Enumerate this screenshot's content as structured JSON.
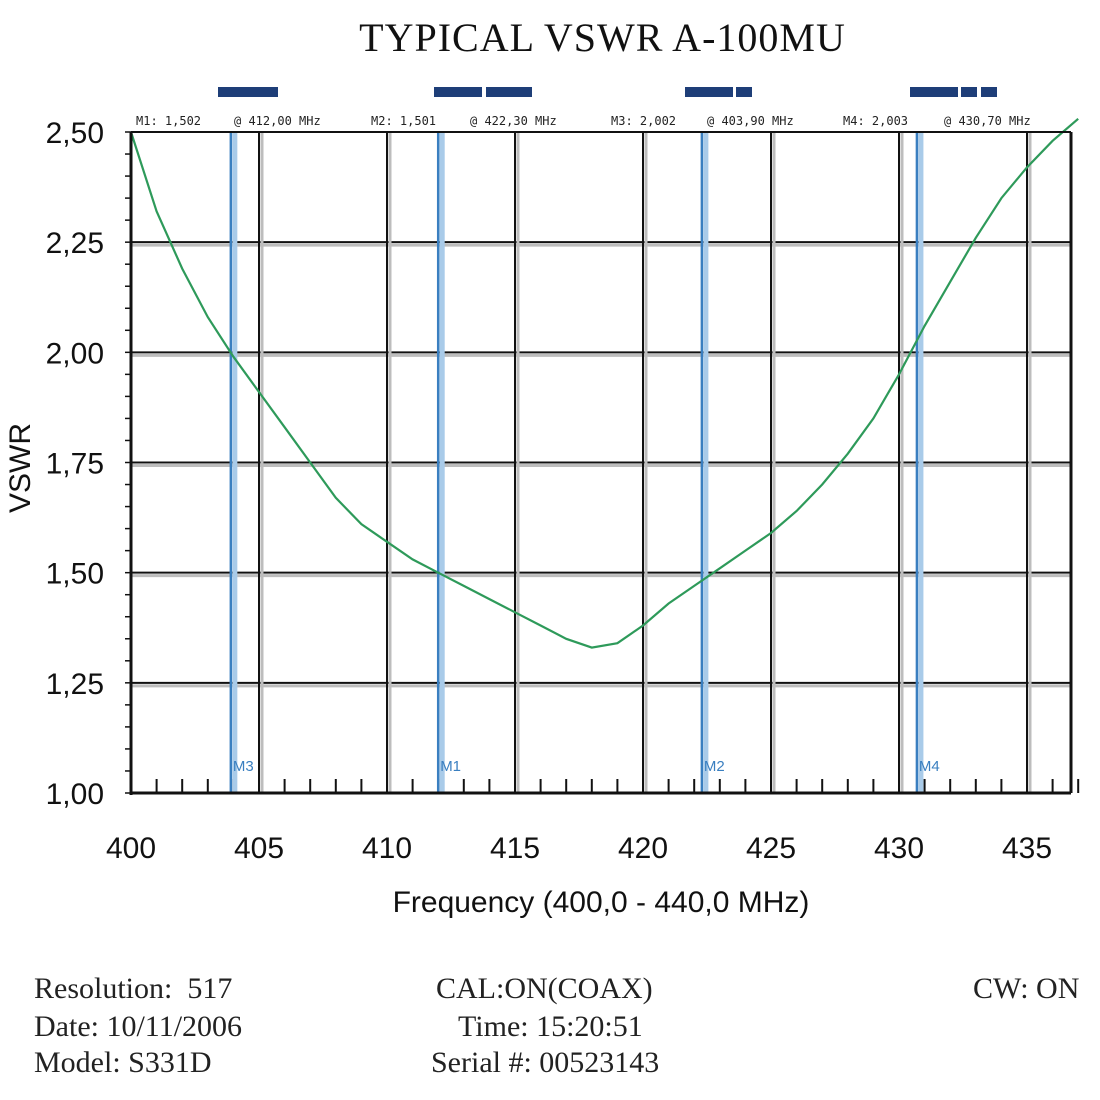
{
  "chart_data": {
    "type": "line",
    "title": "TYPICAL VSWR A-100MU",
    "xlabel": "Frequency (400,0 - 440,0 MHz)",
    "ylabel": "VSWR",
    "xlim": [
      400,
      437
    ],
    "ylim": [
      1.0,
      2.5
    ],
    "x_ticks": [
      400,
      405,
      410,
      415,
      420,
      425,
      430,
      435
    ],
    "y_ticks": [
      1.0,
      1.25,
      1.5,
      1.75,
      2.0,
      2.25,
      2.5
    ],
    "y_tick_labels": [
      "1,00",
      "1,25",
      "1,50",
      "1,75",
      "2,00",
      "2,25",
      "2,50"
    ],
    "grid": true,
    "series": [
      {
        "x": [
          400,
          401,
          402,
          403,
          404,
          405,
          406,
          407,
          408,
          409,
          410,
          411,
          412,
          413,
          414,
          415,
          416,
          417,
          418,
          419,
          420,
          421,
          422,
          423,
          424,
          425,
          426,
          427,
          428,
          429,
          430,
          431,
          432,
          433,
          434,
          435,
          436,
          437
        ],
        "y": [
          2.5,
          2.32,
          2.19,
          2.08,
          1.99,
          1.91,
          1.83,
          1.75,
          1.67,
          1.61,
          1.57,
          1.53,
          1.5,
          1.47,
          1.44,
          1.41,
          1.38,
          1.35,
          1.33,
          1.34,
          1.38,
          1.43,
          1.47,
          1.51,
          1.55,
          1.59,
          1.64,
          1.7,
          1.77,
          1.85,
          1.95,
          2.06,
          2.16,
          2.26,
          2.35,
          2.42,
          2.48,
          2.53
        ],
        "color": "#2e9a5a"
      }
    ],
    "markers": [
      {
        "name": "M3",
        "x": 403.9
      },
      {
        "name": "M1",
        "x": 412.0
      },
      {
        "name": "M2",
        "x": 422.3
      },
      {
        "name": "M4",
        "x": 430.7
      }
    ],
    "marker_readout": [
      {
        "label": "M1: 1,502",
        "freq": "@ 412,00 MHz"
      },
      {
        "label": "M2: 1,501",
        "freq": "@ 422,30 MHz"
      },
      {
        "label": "M3: 2,002",
        "freq": "@ 403,90 MHz"
      },
      {
        "label": "M4: 2,003",
        "freq": "@ 430,70 MHz"
      }
    ],
    "colors": {
      "trace": "#2e9a5a",
      "marker_line": "#3a7fc0",
      "marker_line_light": "#a9cbe9",
      "indicator": "#1e3e78",
      "grid": "#111111",
      "grid_light": "#bdbdbd"
    }
  },
  "footer": {
    "resolution": "Resolution:  517",
    "date": "Date: 10/11/2006",
    "model": "Model: S331D",
    "cal": "CAL:ON(COAX)",
    "time": "Time: 15:20:51",
    "serial": "Serial #: 00523143",
    "cw": "CW: ON"
  }
}
